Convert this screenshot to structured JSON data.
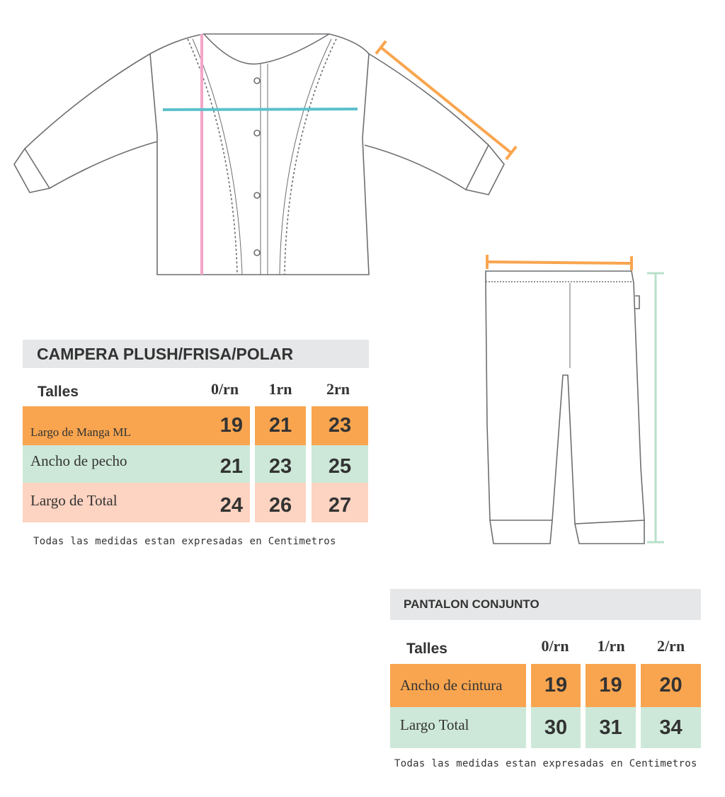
{
  "colors": {
    "orange": "#f9a54f",
    "green": "#cde8d8",
    "pink": "#fdd3c1",
    "header_gray": "#e6e7e8",
    "sleeve_line": "#f9a54f",
    "chest_line": "#5bc0cc",
    "length_line": "#f4a6c8",
    "pants_length_line": "#b8e0c9"
  },
  "campera": {
    "title": "CAMPERA PLUSH/FRISA/POLAR",
    "talles_label": "Talles",
    "sizes": [
      "0/rn",
      "1rn",
      "2rn"
    ],
    "rows": [
      {
        "label": "Largo de Manga ML",
        "values": [
          "19",
          "21",
          "23"
        ],
        "color": "orange"
      },
      {
        "label": "Ancho de pecho",
        "values": [
          "21",
          "23",
          "25"
        ],
        "color": "green"
      },
      {
        "label": "Largo de Total",
        "values": [
          "24",
          "26",
          "27"
        ],
        "color": "pink"
      }
    ],
    "note": "Todas las medidas estan expresadas en Centimetros"
  },
  "pantalon": {
    "title": "PANTALON CONJUNTO",
    "talles_label": "Talles",
    "sizes": [
      "0/rn",
      "1/rn",
      "2/rn"
    ],
    "rows": [
      {
        "label": "Ancho de cintura",
        "values": [
          "19",
          "19",
          "20"
        ],
        "color": "orange"
      },
      {
        "label": "Largo Total",
        "values": [
          "30",
          "31",
          "34"
        ],
        "color": "green"
      }
    ],
    "note": "Todas las medidas estan expresadas en Centimetros"
  }
}
